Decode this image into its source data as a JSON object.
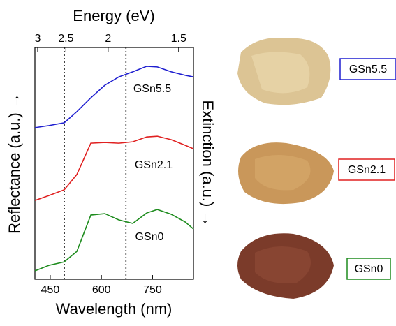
{
  "chart_data": {
    "type": "line",
    "xlabel": "Wavelength (nm)",
    "x2label": "Energy (eV)",
    "ylabel": "Reflectance (a.u.) →",
    "y2label": "Extinction (a.u.) →",
    "x": [
      405,
      446,
      491,
      528,
      569,
      610,
      651,
      692,
      733,
      764,
      805,
      846,
      870
    ],
    "series": [
      {
        "name": "GSn5.5",
        "color": "#1f1fd0",
        "values": [
          6.54,
          6.63,
          6.75,
          7.23,
          7.83,
          8.37,
          8.73,
          8.95,
          9.19,
          9.16,
          8.95,
          8.8,
          8.73
        ]
      },
      {
        "name": "GSn2.1",
        "color": "#e02020",
        "values": [
          3.4,
          3.61,
          3.86,
          4.52,
          5.87,
          5.9,
          5.87,
          5.93,
          6.14,
          6.17,
          6.02,
          5.78,
          5.63
        ]
      },
      {
        "name": "GSn0",
        "color": "#1e8c1e",
        "values": [
          0.36,
          0.6,
          0.75,
          1.2,
          2.77,
          2.83,
          2.56,
          2.41,
          2.86,
          3.01,
          2.8,
          2.47,
          2.17
        ]
      }
    ],
    "reference_lines": [
      491,
      672
    ],
    "xlim": [
      405,
      870
    ],
    "xticks": [
      450,
      600,
      750
    ],
    "x2lim": [
      3.06,
      1.425
    ],
    "x2scale": "reciprocal",
    "x2ticks": [
      3,
      2.5,
      2,
      1.5
    ],
    "ylim": [
      0,
      10
    ]
  }
}
